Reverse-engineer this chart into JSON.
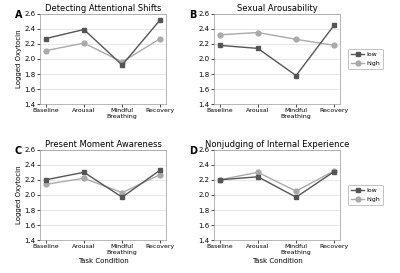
{
  "panels": [
    {
      "label": "A",
      "title": "Detecting Attentional Shifts",
      "low": [
        2.27,
        2.39,
        1.92,
        2.52
      ],
      "high": [
        2.11,
        2.21,
        1.96,
        2.27
      ],
      "show_legend": false
    },
    {
      "label": "B",
      "title": "Sexual Arousability",
      "low": [
        2.18,
        2.14,
        1.78,
        2.45
      ],
      "high": [
        2.32,
        2.35,
        2.26,
        2.18
      ],
      "show_legend": true
    },
    {
      "label": "C",
      "title": "Present Moment Awareness",
      "low": [
        2.2,
        2.3,
        1.97,
        2.33
      ],
      "high": [
        2.14,
        2.22,
        2.03,
        2.27
      ],
      "show_legend": false
    },
    {
      "label": "D",
      "title": "Nonjudging of Internal Experience",
      "low": [
        2.2,
        2.24,
        1.97,
        2.31
      ],
      "high": [
        2.2,
        2.3,
        2.05,
        2.32
      ],
      "show_legend": true
    }
  ],
  "x_labels": [
    "Baseline",
    "Arousal",
    "Mindful\nBreathing",
    "Recovery"
  ],
  "ylabel": "Logged Oxytocin",
  "xlabel": "Task Condition",
  "ylim": [
    1.4,
    2.6
  ],
  "yticks": [
    1.4,
    1.6,
    1.8,
    2.0,
    2.2,
    2.4,
    2.6
  ],
  "color_low": "#555555",
  "color_high": "#aaaaaa",
  "marker_low": "s",
  "marker_high": "o",
  "linewidth": 1.0,
  "markersize": 3.5,
  "background": "#ffffff"
}
